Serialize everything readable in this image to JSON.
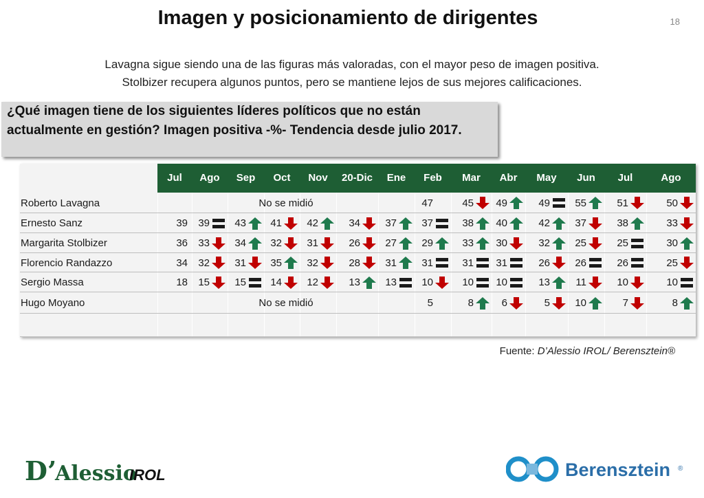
{
  "title": "Imagen y posicionamiento de dirigentes",
  "page_number": "18",
  "subtitle_lines": [
    "Lavagna sigue siendo una de las figuras más valoradas, con el mayor peso de imagen positiva.",
    "Stolbizer recupera algunos puntos, pero se mantiene lejos de sus mejores calificaciones."
  ],
  "question": "¿Qué imagen tiene de los siguientes líderes políticos que no están actualmente en gestión? Imagen positiva -%- Tendencia desde julio 2017.",
  "source_label": "Fuente: ",
  "source_name": "D’Alessio IROL/ Berensztein®",
  "logos": {
    "left_main": "D’Alessio",
    "left_sub": "IROL",
    "right": "Berensztein"
  },
  "colors": {
    "header": "#1e5e34",
    "up": "#1f7a4d",
    "down": "#c00000",
    "equal": "#1a1a1a"
  },
  "chart_data": {
    "type": "table",
    "columns": [
      "Jul",
      "Ago",
      "Sep",
      "Oct",
      "Nov",
      "20-Dic",
      "Ene",
      "Feb",
      "Mar",
      "Abr",
      "May",
      "Jun",
      "Jul",
      "Ago"
    ],
    "not_measured_text": "No se midió",
    "rows": [
      {
        "name": "Roberto Lavagna",
        "not_measured_until": 7,
        "values": [
          null,
          null,
          null,
          null,
          null,
          null,
          null,
          47,
          45,
          49,
          49,
          55,
          51,
          50
        ],
        "trend": [
          null,
          null,
          null,
          null,
          null,
          null,
          null,
          null,
          "down",
          "up",
          "equal",
          "up",
          "down",
          "down"
        ]
      },
      {
        "name": "Ernesto Sanz",
        "values": [
          39,
          39,
          43,
          41,
          42,
          34,
          37,
          37,
          38,
          40,
          42,
          37,
          38,
          33
        ],
        "trend": [
          null,
          "equal",
          "up",
          "down",
          "up",
          "down",
          "up",
          "equal",
          "up",
          "up",
          "up",
          "down",
          "up",
          "down"
        ]
      },
      {
        "name": "Margarita Stolbizer",
        "values": [
          36,
          33,
          34,
          32,
          31,
          26,
          27,
          29,
          33,
          30,
          32,
          25,
          25,
          30
        ],
        "trend": [
          null,
          "down",
          "up",
          "down",
          "down",
          "down",
          "up",
          "up",
          "up",
          "down",
          "up",
          "down",
          "equal",
          "up"
        ]
      },
      {
        "name": "Florencio Randazzo",
        "values": [
          34,
          32,
          31,
          35,
          32,
          28,
          31,
          31,
          31,
          31,
          26,
          26,
          26,
          25
        ],
        "trend": [
          null,
          "down",
          "down",
          "up",
          "down",
          "down",
          "up",
          "equal",
          "equal",
          "equal",
          "down",
          "equal",
          "equal",
          "down"
        ]
      },
      {
        "name": "Sergio Massa",
        "values": [
          18,
          15,
          15,
          14,
          12,
          13,
          13,
          10,
          10,
          10,
          13,
          11,
          10,
          10
        ],
        "trend": [
          null,
          "down",
          "equal",
          "down",
          "down",
          "up",
          "equal",
          "down",
          "equal",
          "equal",
          "up",
          "down",
          "down",
          "equal"
        ]
      },
      {
        "name": "Hugo Moyano",
        "not_measured_until": 7,
        "values": [
          null,
          null,
          null,
          null,
          null,
          null,
          null,
          5,
          8,
          6,
          5,
          10,
          7,
          8
        ],
        "trend": [
          null,
          null,
          null,
          null,
          null,
          null,
          null,
          null,
          "up",
          "down",
          "down",
          "up",
          "down",
          "up"
        ]
      }
    ]
  }
}
